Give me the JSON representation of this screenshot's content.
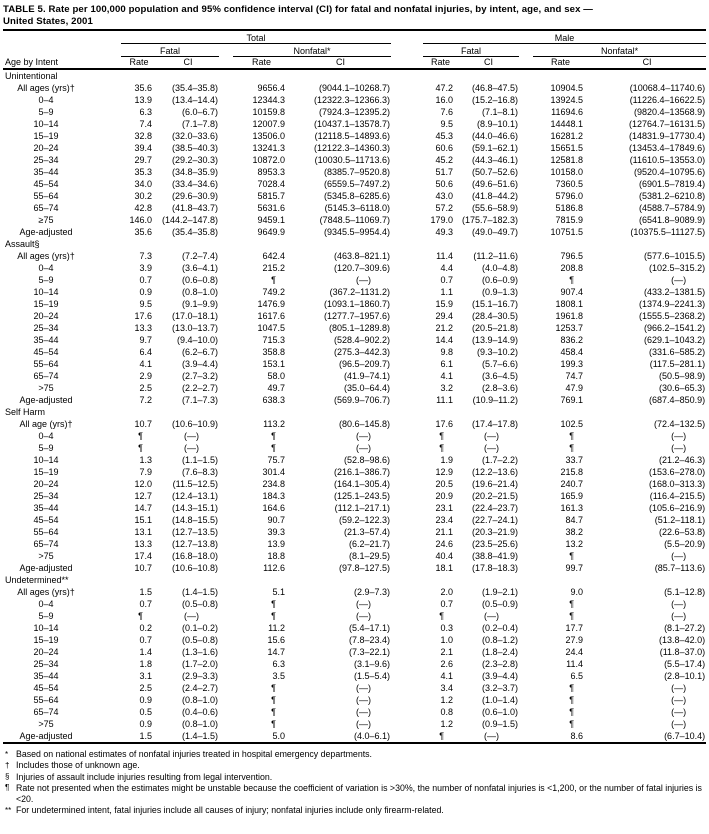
{
  "title": {
    "line1": "TABLE 5. Rate per 100,000 population and 95% confidence interval (CI) for fatal and nonfatal injuries, by intent, age, and sex —",
    "line2": "United States, 2001"
  },
  "header": {
    "age_by_intent": "Age by Intent",
    "total": "Total",
    "male": "Male",
    "fatal": "Fatal",
    "nonfatal": "Nonfatal*",
    "rate": "Rate",
    "ci": "CI"
  },
  "sections": [
    {
      "name": "Unintentional",
      "rows": [
        {
          "label": "All ages (yrs)†",
          "c": [
            "35.6",
            "(35.4–35.8)",
            "9656.4",
            "(9044.1–10268.7)",
            "47.2",
            "(46.8–47.5)",
            "10904.5",
            "(10068.4–11740.6)"
          ]
        },
        {
          "label": "0–4",
          "c": [
            "13.9",
            "(13.4–14.4)",
            "12344.3",
            "(12322.3–12366.3)",
            "16.0",
            "(15.2–16.8)",
            "13924.5",
            "(11226.4–16622.5)"
          ]
        },
        {
          "label": "5–9",
          "c": [
            "6.3",
            "(6.0–6.7)",
            "10159.8",
            "(7924.3–12395.2)",
            "7.6",
            "(7.1–8.1)",
            "11694.6",
            "(9820.4–13568.9)"
          ]
        },
        {
          "label": "10–14",
          "c": [
            "7.4",
            "(7.1–7.8)",
            "12007.9",
            "(10437.1–13578.7)",
            "9.5",
            "(8.9–10.1)",
            "14448.1",
            "(12764.7–16131.5)"
          ]
        },
        {
          "label": "15–19",
          "c": [
            "32.8",
            "(32.0–33.6)",
            "13506.0",
            "(12118.5–14893.6)",
            "45.3",
            "(44.0–46.6)",
            "16281.2",
            "(14831.9–17730.4)"
          ]
        },
        {
          "label": "20–24",
          "c": [
            "39.4",
            "(38.5–40.3)",
            "13241.3",
            "(12122.3–14360.3)",
            "60.6",
            "(59.1–62.1)",
            "15651.5",
            "(13453.4–17849.6)"
          ]
        },
        {
          "label": "25–34",
          "c": [
            "29.7",
            "(29.2–30.3)",
            "10872.0",
            "(10030.5–11713.6)",
            "45.2",
            "(44.3–46.1)",
            "12581.8",
            "(11610.5–13553.0)"
          ]
        },
        {
          "label": "35–44",
          "c": [
            "35.3",
            "(34.8–35.9)",
            "8953.3",
            "(8385.7–9520.8)",
            "51.7",
            "(50.7–52.6)",
            "10158.0",
            "(9520.4–10795.6)"
          ]
        },
        {
          "label": "45–54",
          "c": [
            "34.0",
            "(33.4–34.6)",
            "7028.4",
            "(6559.5–7497.2)",
            "50.6",
            "(49.6–51.6)",
            "7360.5",
            "(6901.5–7819.4)"
          ]
        },
        {
          "label": "55–64",
          "c": [
            "30.2",
            "(29.6–30.9)",
            "5815.7",
            "(5345.8–6285.6)",
            "43.0",
            "(41.8–44.2)",
            "5796.0",
            "(5381.2–6210.8)"
          ]
        },
        {
          "label": "65–74",
          "c": [
            "42.8",
            "(41.8–43.7)",
            "5631.6",
            "(5145.3–6118.0)",
            "57.2",
            "(55.6–58.9)",
            "5186.8",
            "(4588.7–5784.9)"
          ]
        },
        {
          "label": "≥75",
          "c": [
            "146.0",
            "(144.2–147.8)",
            "9459.1",
            "(7848.5–11069.7)",
            "179.0",
            "(175.7–182.3)",
            "7815.9",
            "(6541.8–9089.9)"
          ]
        },
        {
          "label": "Age-adjusted",
          "c": [
            "35.6",
            "(35.4–35.8)",
            "9649.9",
            "(9345.5–9954.4)",
            "49.3",
            "(49.0–49.7)",
            "10751.5",
            "(10375.5–11127.5)"
          ]
        }
      ]
    },
    {
      "name": "Assault§",
      "rows": [
        {
          "label": "All ages (yrs)†",
          "c": [
            "7.3",
            "(7.2–7.4)",
            "642.4",
            "(463.8–821.1)",
            "11.4",
            "(11.2–11.6)",
            "796.5",
            "(577.6–1015.5)"
          ]
        },
        {
          "label": "0–4",
          "c": [
            "3.9",
            "(3.6–4.1)",
            "215.2",
            "(120.7–309.6)",
            "4.4",
            "(4.0–4.8)",
            "208.8",
            "(102.5–315.2)"
          ]
        },
        {
          "label": "5–9",
          "c": [
            "0.7",
            "(0.6–0.8)",
            "¶",
            "(—)",
            "0.7",
            "(0.6–0.9)",
            "¶",
            "(—)"
          ]
        },
        {
          "label": "10–14",
          "c": [
            "0.9",
            "(0.8–1.0)",
            "749.2",
            "(367.2–1131.2)",
            "1.1",
            "(0.9–1.3)",
            "907.4",
            "(433.2–1381.5)"
          ]
        },
        {
          "label": "15–19",
          "c": [
            "9.5",
            "(9.1–9.9)",
            "1476.9",
            "(1093.1–1860.7)",
            "15.9",
            "(15.1–16.7)",
            "1808.1",
            "(1374.9–2241.3)"
          ]
        },
        {
          "label": "20–24",
          "c": [
            "17.6",
            "(17.0–18.1)",
            "1617.6",
            "(1277.7–1957.6)",
            "29.4",
            "(28.4–30.5)",
            "1961.8",
            "(1555.5–2368.2)"
          ]
        },
        {
          "label": "25–34",
          "c": [
            "13.3",
            "(13.0–13.7)",
            "1047.5",
            "(805.1–1289.8)",
            "21.2",
            "(20.5–21.8)",
            "1253.7",
            "(966.2–1541.2)"
          ]
        },
        {
          "label": "35–44",
          "c": [
            "9.7",
            "(9.4–10.0)",
            "715.3",
            "(528.4–902.2)",
            "14.4",
            "(13.9–14.9)",
            "836.2",
            "(629.1–1043.2)"
          ]
        },
        {
          "label": "45–54",
          "c": [
            "6.4",
            "(6.2–6.7)",
            "358.8",
            "(275.3–442.3)",
            "9.8",
            "(9.3–10.2)",
            "458.4",
            "(331.6–585.2)"
          ]
        },
        {
          "label": "55–64",
          "c": [
            "4.1",
            "(3.9–4.4)",
            "153.1",
            "(96.5–209.7)",
            "6.1",
            "(5.7–6.6)",
            "199.3",
            "(117.5–281.1)"
          ]
        },
        {
          "label": "65–74",
          "c": [
            "2.9",
            "(2.7–3.2)",
            "58.0",
            "(41.9–74.1)",
            "4.1",
            "(3.6–4.5)",
            "74.7",
            "(50.5–98.9)"
          ]
        },
        {
          "label": ">75",
          "c": [
            "2.5",
            "(2.2–2.7)",
            "49.7",
            "(35.0–64.4)",
            "3.2",
            "(2.8–3.6)",
            "47.9",
            "(30.6–65.3)"
          ]
        },
        {
          "label": "Age-adjusted",
          "c": [
            "7.2",
            "(7.1–7.3)",
            "638.3",
            "(569.9–706.7)",
            "11.1",
            "(10.9–11.2)",
            "769.1",
            "(687.4–850.9)"
          ]
        }
      ]
    },
    {
      "name": "Self Harm",
      "rows": [
        {
          "label": "All age (yrs)†",
          "c": [
            "10.7",
            "(10.6–10.9)",
            "113.2",
            "(80.6–145.8)",
            "17.6",
            "(17.4–17.8)",
            "102.5",
            "(72.4–132.5)"
          ]
        },
        {
          "label": "0–4",
          "c": [
            "¶",
            "(—)",
            "¶",
            "(—)",
            "¶",
            "(—)",
            "¶",
            "(—)"
          ]
        },
        {
          "label": "5–9",
          "c": [
            "¶",
            "(—)",
            "¶",
            "(—)",
            "¶",
            "(—)",
            "¶",
            "(—)"
          ]
        },
        {
          "label": "10–14",
          "c": [
            "1.3",
            "(1.1–1.5)",
            "75.7",
            "(52.8–98.6)",
            "1.9",
            "(1.7–2.2)",
            "33.7",
            "(21.2–46.3)"
          ]
        },
        {
          "label": "15–19",
          "c": [
            "7.9",
            "(7.6–8.3)",
            "301.4",
            "(216.1–386.7)",
            "12.9",
            "(12.2–13.6)",
            "215.8",
            "(153.6–278.0)"
          ]
        },
        {
          "label": "20–24",
          "c": [
            "12.0",
            "(11.5–12.5)",
            "234.8",
            "(164.1–305.4)",
            "20.5",
            "(19.6–21.4)",
            "240.7",
            "(168.0–313.3)"
          ]
        },
        {
          "label": "25–34",
          "c": [
            "12.7",
            "(12.4–13.1)",
            "184.3",
            "(125.1–243.5)",
            "20.9",
            "(20.2–21.5)",
            "165.9",
            "(116.4–215.5)"
          ]
        },
        {
          "label": "35–44",
          "c": [
            "14.7",
            "(14.3–15.1)",
            "164.6",
            "(112.1–217.1)",
            "23.1",
            "(22.4–23.7)",
            "161.3",
            "(105.6–216.9)"
          ]
        },
        {
          "label": "45–54",
          "c": [
            "15.1",
            "(14.8–15.5)",
            "90.7",
            "(59.2–122.3)",
            "23.4",
            "(22.7–24.1)",
            "84.7",
            "(51.2–118.1)"
          ]
        },
        {
          "label": "55–64",
          "c": [
            "13.1",
            "(12.7–13.5)",
            "39.3",
            "(21.3–57.4)",
            "21.1",
            "(20.3–21.9)",
            "38.2",
            "(22.6–53.8)"
          ]
        },
        {
          "label": "65–74",
          "c": [
            "13.3",
            "(12.7–13.8)",
            "13.9",
            "(6.2–21.7)",
            "24.6",
            "(23.5–25.6)",
            "13.2",
            "(5.5–20.9)"
          ]
        },
        {
          "label": ">75",
          "c": [
            "17.4",
            "(16.8–18.0)",
            "18.8",
            "(8.1–29.5)",
            "40.4",
            "(38.8–41.9)",
            "¶",
            "(—)"
          ]
        },
        {
          "label": "Age-adjusted",
          "c": [
            "10.7",
            "(10.6–10.8)",
            "112.6",
            "(97.8–127.5)",
            "18.1",
            "(17.8–18.3)",
            "99.7",
            "(85.7–113.6)"
          ]
        }
      ]
    },
    {
      "name": "Undetermined**",
      "rows": [
        {
          "label": "All ages (yrs)†",
          "c": [
            "1.5",
            "(1.4–1.5)",
            "5.1",
            "(2.9–7.3)",
            "2.0",
            "(1.9–2.1)",
            "9.0",
            "(5.1–12.8)"
          ]
        },
        {
          "label": "0–4",
          "c": [
            "0.7",
            "(0.5–0.8)",
            "¶",
            "(—)",
            "0.7",
            "(0.5–0.9)",
            "¶",
            "(—)"
          ]
        },
        {
          "label": "5–9",
          "c": [
            "¶",
            "(—)",
            "¶",
            "(—)",
            "¶",
            "(—)",
            "¶",
            "(—)"
          ]
        },
        {
          "label": "10–14",
          "c": [
            "0.2",
            "(0.1–0.2)",
            "11.2",
            "(5.4–17.1)",
            "0.3",
            "(0.2–0.4)",
            "17.7",
            "(8.1–27.2)"
          ]
        },
        {
          "label": "15–19",
          "c": [
            "0.7",
            "(0.5–0.8)",
            "15.6",
            "(7.8–23.4)",
            "1.0",
            "(0.8–1.2)",
            "27.9",
            "(13.8–42.0)"
          ]
        },
        {
          "label": "20–24",
          "c": [
            "1.4",
            "(1.3–1.6)",
            "14.7",
            "(7.3–22.1)",
            "2.1",
            "(1.8–2.4)",
            "24.4",
            "(11.8–37.0)"
          ]
        },
        {
          "label": "25–34",
          "c": [
            "1.8",
            "(1.7–2.0)",
            "6.3",
            "(3.1–9.6)",
            "2.6",
            "(2.3–2.8)",
            "11.4",
            "(5.5–17.4)"
          ]
        },
        {
          "label": "35–44",
          "c": [
            "3.1",
            "(2.9–3.3)",
            "3.5",
            "(1.5–5.4)",
            "4.1",
            "(3.9–4.4)",
            "6.5",
            "(2.8–10.1)"
          ]
        },
        {
          "label": "45–54",
          "c": [
            "2.5",
            "(2.4–2.7)",
            "¶",
            "(—)",
            "3.4",
            "(3.2–3.7)",
            "¶",
            "(—)"
          ]
        },
        {
          "label": "55–64",
          "c": [
            "0.9",
            "(0.8–1.0)",
            "¶",
            "(—)",
            "1.2",
            "(1.0–1.4)",
            "¶",
            "(—)"
          ]
        },
        {
          "label": "65–74",
          "c": [
            "0.5",
            "(0.4–0.6)",
            "¶",
            "(—)",
            "0.8",
            "(0.6–1.0)",
            "¶",
            "(—)"
          ]
        },
        {
          "label": ">75",
          "c": [
            "0.9",
            "(0.8–1.0)",
            "¶",
            "(—)",
            "1.2",
            "(0.9–1.5)",
            "¶",
            "(—)"
          ]
        },
        {
          "label": "Age-adjusted",
          "c": [
            "1.5",
            "(1.4–1.5)",
            "5.0",
            "(4.0–6.1)",
            "¶",
            "(—)",
            "8.6",
            "(6.7–10.4)"
          ]
        }
      ]
    }
  ],
  "footnotes": [
    {
      "marker": "*",
      "text": "Based on national estimates of nonfatal injuries treated in hospital emergency departments."
    },
    {
      "marker": "†",
      "text": "Includes those of unknown age."
    },
    {
      "marker": "§",
      "text": "Injuries of assault include injuries resulting from legal intervention."
    },
    {
      "marker": "¶",
      "text": "Rate not presented when the estimates might be unstable because the coefficient of variation is >30%, the number of nonfatal injuries is <1,200, or the number of fatal injuries is <20."
    },
    {
      "marker": "**",
      "text": "For undetermined intent, fatal injuries include all causes of injury; nonfatal injuries include only firearm-related."
    }
  ],
  "colors": {
    "text": "#000000",
    "background": "#ffffff",
    "rule": "#000000"
  }
}
